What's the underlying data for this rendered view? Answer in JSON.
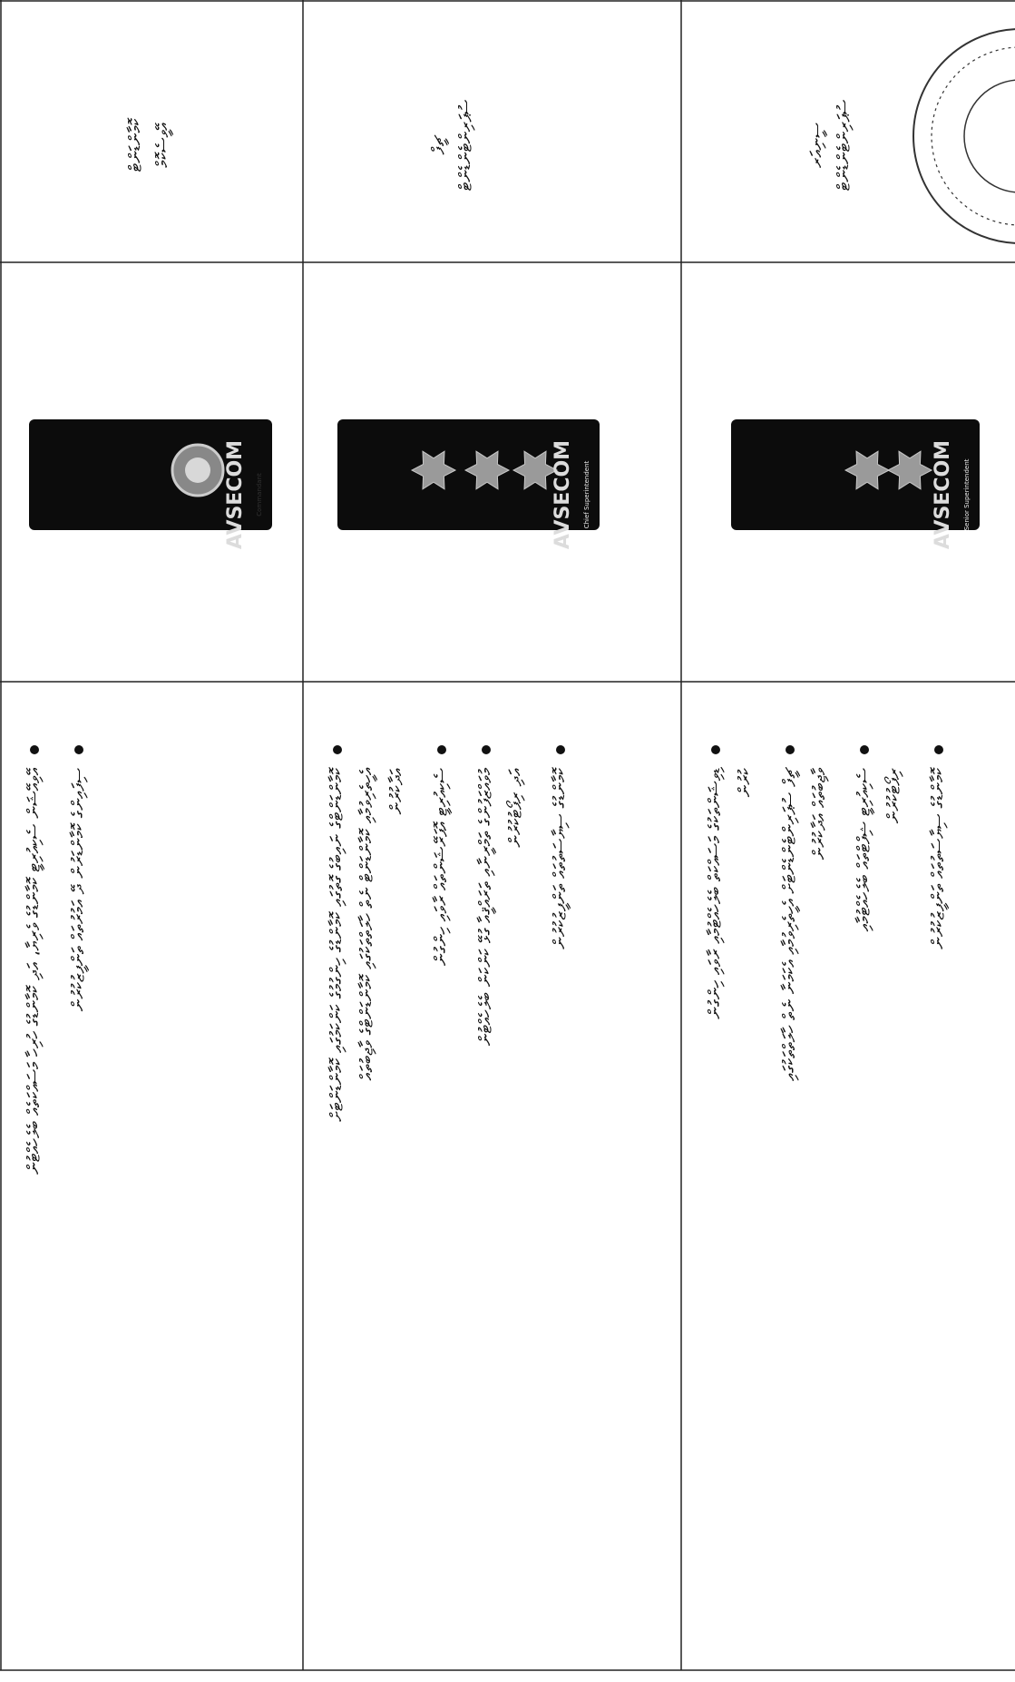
{
  "table": {
    "rows": [
      {
        "rank": [
          "ކޮމާންޑަންޓް",
          "އޭވީސެކޮމް"
        ],
        "insignia": {
          "logo": "AVSECOM",
          "caption": "Commandant"
        },
        "duties": [
          [
            "އޭވިއޭޝަން ސެކިއުރިޓީ ކޮމާންޑުގެ ވެރިޔާ، އަދި ކޮމާންޑުގެ ހުރިހާ މަސައްކަތެއް ބެލެހެއްޓުން"
          ],
          [
            "ސިފައިންގެ ކޮމާންޑަރުން ދޭ އަމުރުތައް ތަންފީޒުކުރުން"
          ]
        ]
      },
      {
        "rank": [
          "ޗީފް",
          "ސުޕަރިންޓެންޑެންޓް"
        ],
        "insignia": {
          "logo": "AVSECOM",
          "caption": "Chief Superintendent"
        },
        "duties": [
          [
            "ކޮމާންޑަންޓްގެ ނައިބުގެ ގޮތުގައި ކޮމާންޑުގެ ހިންގުމުގެ ކަންކަމުގައި ކޮމާންޑަންޓަށް",
            "އެހީތެރިވުމާއި ކޮމާންޑަންޓް ނެތް ހާލަތްތަކުގައި ކޮމާންޑަންޓްގެ ވާޖިބުތައް",
            "އަދާކުރުން"
          ],
          [
            "ސެކިއުރިޓީ އޮޕަރޭޝަންތައް ރާވައި ހިންގުން"
          ],
          [
            "މުވައްޒަފުންގެ ތަމްރީނާއި ތަރައްޤީއާ ގުޅޭ ކަންކަން ބެލެހެއްޓުން",
            "އަދި ރިޕޯޓުކުރުން"
          ],
          [
            "ކޮމާންޑުގެ ސިޔާސަތުތައް ތަންފީޒުކުރުން"
          ]
        ]
      },
      {
        "rank": [
          "ސީނިއަރ",
          "ސުޕަރިންޓެންޑެންޓް"
        ],
        "insignia": {
          "logo": "AVSECOM",
          "caption": "Senior Superintendent"
        },
        "duties": [
          [
            "ޑިވިޝަންތަކުގެ މަސައްކަތް ބެލެހެއްޓުމާއި ރާވައި ހިންގުން",
            "ކުރުން"
          ],
          [
            "ޗީފް ސުޕަރިންޓެންޑެންޓަށް އެހީތެރިވުމާއި އެކަމަނާ ނެތް ހާލަތްތަކުގައި",
            "ވާޖިބުތައް އަދާކުރުން"
          ],
          [
            "ސެކިއުރިޓީ ޝިފްޓްތައް ބެލެހެއްޓުމާއި",
            "ރިޕޯޓުކުރުން"
          ],
          [
            "ކޮމާންޑުގެ ސިޔާސަތުތައް ތަންފީޒުކުރުން"
          ]
        ]
      }
    ]
  }
}
